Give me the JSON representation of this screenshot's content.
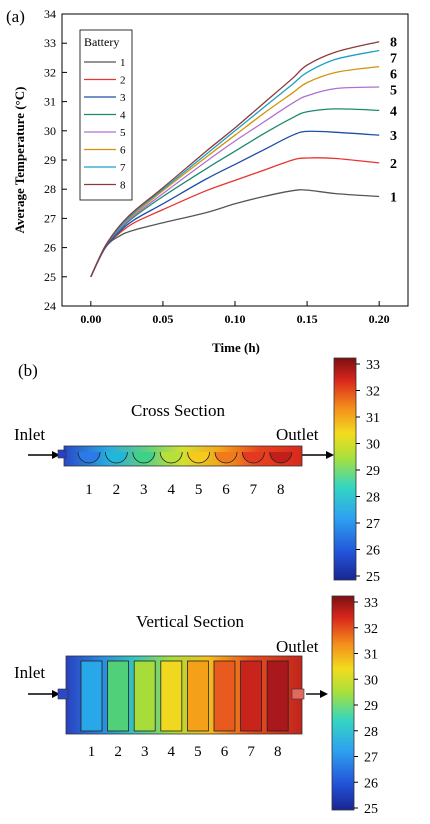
{
  "panel_a_label": "(a)",
  "panel_b_label": "(b)",
  "chart_data": {
    "type": "line",
    "xlabel": "Time (h)",
    "ylabel": "Average Temperature (°C)",
    "xlim": [
      -0.02,
      0.22
    ],
    "ylim": [
      24,
      34
    ],
    "xticks": [
      "0.00",
      "0.05",
      "0.10",
      "0.15",
      "0.20"
    ],
    "xtick_values": [
      0,
      0.05,
      0.1,
      0.15,
      0.2
    ],
    "yticks": [
      "24",
      "25",
      "26",
      "27",
      "28",
      "29",
      "30",
      "31",
      "32",
      "33",
      "34"
    ],
    "ytick_values": [
      24,
      25,
      26,
      27,
      28,
      29,
      30,
      31,
      32,
      33,
      34
    ],
    "grid": false,
    "legend": {
      "title": "Battery",
      "placement": "top-left"
    },
    "x": [
      0,
      0.01,
      0.02,
      0.03,
      0.05,
      0.08,
      0.1,
      0.12,
      0.14,
      0.15,
      0.17,
      0.2
    ],
    "series": [
      {
        "name": "1",
        "end_label": "1",
        "color": "#555555",
        "values": [
          25.0,
          26.0,
          26.4,
          26.6,
          26.85,
          27.2,
          27.5,
          27.75,
          27.95,
          27.97,
          27.85,
          27.75
        ]
      },
      {
        "name": "2",
        "end_label": "2",
        "color": "#e8342f",
        "values": [
          25.0,
          26.0,
          26.5,
          26.85,
          27.3,
          27.95,
          28.3,
          28.65,
          29.0,
          29.07,
          29.05,
          28.9
        ]
      },
      {
        "name": "3",
        "end_label": "3",
        "color": "#1d4fa8",
        "values": [
          25.0,
          26.0,
          26.55,
          26.95,
          27.5,
          28.35,
          28.85,
          29.35,
          29.85,
          29.98,
          29.95,
          29.85
        ]
      },
      {
        "name": "4",
        "end_label": "4",
        "color": "#1a8a6e",
        "values": [
          25.0,
          26.05,
          26.6,
          27.05,
          27.75,
          28.7,
          29.3,
          29.9,
          30.45,
          30.65,
          30.75,
          30.7
        ]
      },
      {
        "name": "5",
        "end_label": "5",
        "color": "#b070d0",
        "values": [
          25.0,
          26.05,
          26.65,
          27.1,
          27.85,
          28.95,
          29.65,
          30.3,
          30.95,
          31.2,
          31.45,
          31.5
        ]
      },
      {
        "name": "6",
        "end_label": "6",
        "color": "#d4920c",
        "values": [
          25.0,
          26.05,
          26.7,
          27.15,
          27.95,
          29.1,
          29.85,
          30.6,
          31.3,
          31.65,
          32.0,
          32.2
        ]
      },
      {
        "name": "7",
        "end_label": "7",
        "color": "#1aa0c8",
        "values": [
          25.0,
          26.05,
          26.7,
          27.2,
          28.0,
          29.2,
          30.0,
          30.8,
          31.6,
          32.0,
          32.45,
          32.75
        ]
      },
      {
        "name": "8",
        "end_label": "8",
        "color": "#8b3a3a",
        "values": [
          25.0,
          26.05,
          26.75,
          27.25,
          28.05,
          29.3,
          30.1,
          30.95,
          31.8,
          32.25,
          32.7,
          33.05
        ]
      }
    ]
  },
  "cross_section": {
    "title": "Cross Section",
    "inlet": "Inlet",
    "outlet": "Outlet",
    "cell_labels": [
      "1",
      "2",
      "3",
      "4",
      "5",
      "6",
      "7",
      "8"
    ],
    "cell_colors": [
      "#2a7be8",
      "#1fb8d8",
      "#3fd08a",
      "#b8e03a",
      "#f7c81e",
      "#f27a1e",
      "#e23a22",
      "#c0201c"
    ],
    "colorbar_ticks": [
      "33",
      "32",
      "31",
      "30",
      "29",
      "28",
      "27",
      "26",
      "25"
    ],
    "colorbar_range": [
      25,
      33
    ]
  },
  "vertical_section": {
    "title": "Vertical Section",
    "inlet": "Inlet",
    "outlet": "Outlet",
    "cell_labels": [
      "1",
      "2",
      "3",
      "4",
      "5",
      "6",
      "7",
      "8"
    ],
    "cell_colors": [
      "#28a8e8",
      "#50d078",
      "#a8dc3a",
      "#f0d820",
      "#f4a018",
      "#e85a1e",
      "#c8241c",
      "#a8181c"
    ],
    "colorbar_ticks": [
      "33",
      "32",
      "31",
      "30",
      "29",
      "28",
      "27",
      "26",
      "25"
    ],
    "colorbar_range": [
      25,
      33
    ]
  }
}
